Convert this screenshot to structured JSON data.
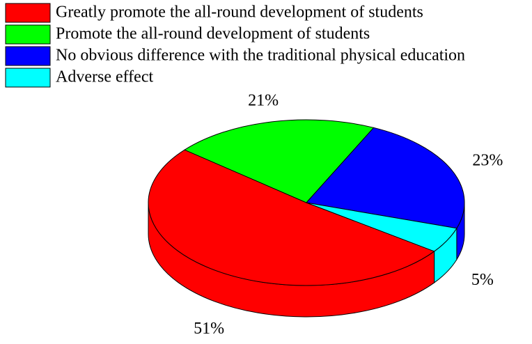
{
  "chart_data": {
    "type": "pie3d",
    "categories": [
      "Greatly promote the all-round development of students",
      "Promote the all-round development of students",
      "No obvious difference with the traditional physical education",
      "Adverse effect"
    ],
    "values": [
      51,
      21,
      23,
      5
    ],
    "value_labels": [
      "51%",
      "21%",
      "23%",
      "5%"
    ],
    "colors": [
      "#ff0000",
      "#00ff00",
      "#0000ff",
      "#00ffff"
    ],
    "legend": "top-left"
  }
}
